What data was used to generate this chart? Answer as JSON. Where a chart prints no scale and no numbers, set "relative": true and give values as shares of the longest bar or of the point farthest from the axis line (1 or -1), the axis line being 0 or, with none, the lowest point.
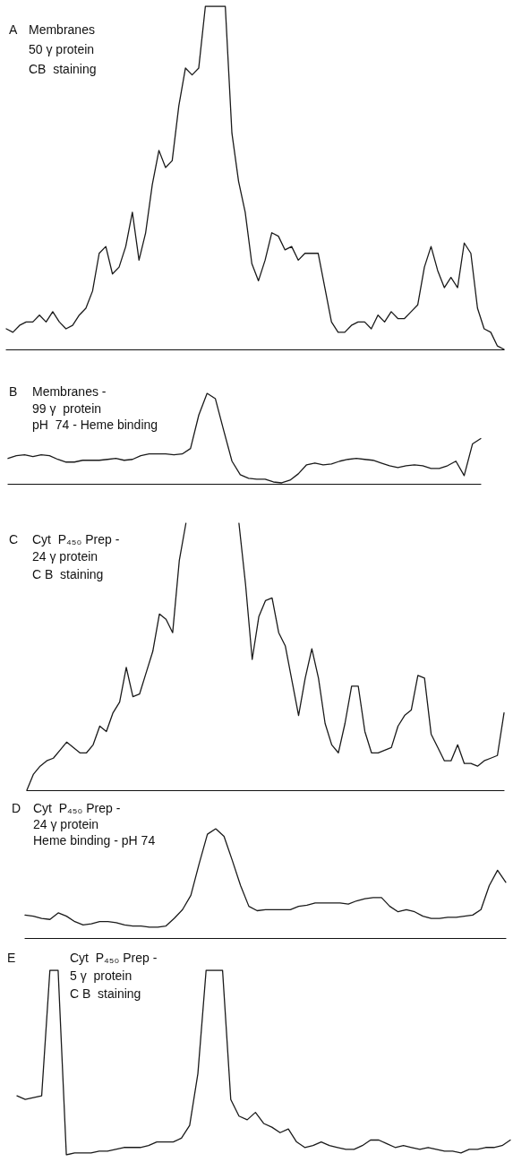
{
  "chart_data": [
    {
      "type": "line",
      "title": "A",
      "subtitle": "Membranes\n50 γ protein\nCB  staining",
      "relative": true,
      "marker": "none",
      "line_style": "solid",
      "categories": [
        null,
        null,
        null,
        null,
        null,
        null,
        null,
        null,
        null,
        null,
        null,
        null,
        null,
        null,
        null,
        null,
        null,
        null,
        null,
        null,
        null,
        null,
        null,
        null,
        null,
        null,
        null,
        null,
        null,
        null,
        null,
        null,
        null,
        null,
        null,
        null,
        null,
        null,
        null,
        null,
        null,
        null,
        null,
        null,
        null,
        null,
        null,
        null,
        null,
        null,
        null,
        null,
        null,
        null,
        null,
        null,
        null,
        null,
        null,
        null,
        null,
        null,
        null,
        null,
        null,
        null,
        null,
        null,
        null,
        null,
        null,
        null,
        null,
        null,
        null,
        null
      ],
      "series": [
        {
          "color": "#1a1a1a",
          "values": [
            0.06,
            0.05,
            0.07,
            0.08,
            0.08,
            0.1,
            0.08,
            0.11,
            0.08,
            0.06,
            0.07,
            0.1,
            0.12,
            0.17,
            0.28,
            0.3,
            0.22,
            0.24,
            0.3,
            0.4,
            0.26,
            0.34,
            0.48,
            0.58,
            0.53,
            0.55,
            0.71,
            0.82,
            0.8,
            0.82,
            1,
            1,
            1,
            1,
            0.63,
            0.49,
            0.4,
            0.25,
            0.2,
            0.26,
            0.34,
            0.33,
            0.29,
            0.3,
            0.26,
            0.28,
            0.28,
            0.28,
            0.18,
            0.08,
            0.05,
            0.05,
            0.07,
            0.08,
            0.08,
            0.06,
            0.1,
            0.08,
            0.11,
            0.09,
            0.09,
            0.11,
            0.13,
            0.24,
            0.3,
            0.23,
            0.18,
            0.21,
            0.18,
            0.31,
            0.28,
            0.12,
            0.06,
            0.05,
            0.01,
            0
          ]
        }
      ]
    },
    {
      "type": "line",
      "title": "B",
      "subtitle": "Membranes -\n99 γ  protein\npH  74 - Heme binding",
      "relative": true,
      "marker": "none",
      "line_style": "solid",
      "categories": [
        null,
        null,
        null,
        null,
        null,
        null,
        null,
        null,
        null,
        null,
        null,
        null,
        null,
        null,
        null,
        null,
        null,
        null,
        null,
        null,
        null,
        null,
        null,
        null,
        null,
        null,
        null,
        null,
        null,
        null,
        null,
        null,
        null,
        null,
        null,
        null,
        null,
        null,
        null,
        null,
        null,
        null,
        null,
        null,
        null,
        null,
        null,
        null,
        null,
        null,
        null,
        null,
        null,
        null,
        null,
        null,
        null,
        null
      ],
      "series": [
        {
          "color": "#1a1a1a",
          "values": [
            0.28,
            0.31,
            0.32,
            0.3,
            0.32,
            0.31,
            0.27,
            0.24,
            0.24,
            0.26,
            0.26,
            0.26,
            0.27,
            0.28,
            0.26,
            0.27,
            0.31,
            0.33,
            0.33,
            0.33,
            0.32,
            0.33,
            0.39,
            0.76,
            1.0,
            0.94,
            0.59,
            0.25,
            0.1,
            0.06,
            0.05,
            0.05,
            0.02,
            0.01,
            0.04,
            0.11,
            0.21,
            0.23,
            0.21,
            0.22,
            0.25,
            0.27,
            0.28,
            0.27,
            0.26,
            0.23,
            0.2,
            0.18,
            0.2,
            0.21,
            0.2,
            0.17,
            0.17,
            0.2,
            0.25,
            0.09,
            0.44,
            0.5
          ]
        }
      ]
    },
    {
      "type": "line",
      "title": "C",
      "subtitle": "Cyt  P₄₅₀ Prep -\n24 γ protein\nC B  staining",
      "relative": true,
      "marker": "none",
      "line_style": "solid",
      "categories": [
        null,
        null,
        null,
        null,
        null,
        null,
        null,
        null,
        null,
        null,
        null,
        null,
        null,
        null,
        null,
        null,
        null,
        null,
        null,
        null,
        null,
        null,
        null,
        null,
        null,
        null,
        null,
        null,
        null,
        null,
        null,
        null,
        null,
        null,
        null,
        null,
        null,
        null,
        null,
        null,
        null,
        null,
        null,
        null,
        null,
        null,
        null,
        null,
        null,
        null,
        null,
        null,
        null,
        null,
        null,
        null,
        null,
        null,
        null,
        null,
        null,
        null,
        null,
        null,
        null,
        null,
        null,
        null,
        null,
        null,
        null,
        null,
        null
      ],
      "series": [
        {
          "color": "#1a1a1a",
          "values": [
            0,
            0.06,
            0.09,
            0.11,
            0.12,
            0.15,
            0.18,
            0.16,
            0.14,
            0.14,
            0.17,
            0.24,
            0.22,
            0.29,
            0.33,
            0.46,
            0.35,
            0.36,
            0.44,
            0.52,
            0.66,
            0.64,
            0.59,
            0.86,
            1,
            null,
            null,
            null,
            null,
            null,
            null,
            null,
            1,
            0.77,
            0.49,
            0.65,
            0.71,
            0.72,
            0.59,
            0.54,
            0.41,
            0.28,
            0.42,
            0.53,
            0.42,
            0.25,
            0.17,
            0.14,
            0.25,
            0.39,
            0.39,
            0.22,
            0.14,
            0.14,
            0.15,
            0.16,
            0.24,
            0.28,
            0.3,
            0.43,
            0.42,
            0.21,
            0.16,
            0.11,
            0.11,
            0.17,
            0.1,
            0.1,
            0.09,
            0.11,
            0.12,
            0.13,
            0.29
          ]
        }
      ]
    },
    {
      "type": "line",
      "title": "D",
      "subtitle": "Cyt  P₄₅₀ Prep -\n24 γ protein\nHeme binding - pH 74",
      "relative": true,
      "marker": "none",
      "line_style": "solid",
      "categories": [
        null,
        null,
        null,
        null,
        null,
        null,
        null,
        null,
        null,
        null,
        null,
        null,
        null,
        null,
        null,
        null,
        null,
        null,
        null,
        null,
        null,
        null,
        null,
        null,
        null,
        null,
        null,
        null,
        null,
        null,
        null,
        null,
        null,
        null,
        null,
        null,
        null,
        null,
        null,
        null,
        null,
        null,
        null,
        null,
        null,
        null,
        null,
        null,
        null,
        null,
        null,
        null,
        null,
        null,
        null,
        null,
        null,
        null,
        null
      ],
      "series": [
        {
          "color": "#1a1a1a",
          "values": [
            0.21,
            0.2,
            0.18,
            0.17,
            0.23,
            0.2,
            0.15,
            0.12,
            0.13,
            0.15,
            0.15,
            0.14,
            0.12,
            0.11,
            0.11,
            0.1,
            0.1,
            0.11,
            0.18,
            0.26,
            0.39,
            0.68,
            0.95,
            1.0,
            0.93,
            0.71,
            0.48,
            0.29,
            0.25,
            0.26,
            0.26,
            0.26,
            0.26,
            0.29,
            0.3,
            0.32,
            0.32,
            0.32,
            0.32,
            0.31,
            0.34,
            0.36,
            0.37,
            0.37,
            0.29,
            0.24,
            0.26,
            0.24,
            0.2,
            0.18,
            0.18,
            0.19,
            0.19,
            0.2,
            0.21,
            0.26,
            0.48,
            0.62,
            0.51
          ]
        }
      ]
    },
    {
      "type": "line",
      "title": "E",
      "subtitle": "Cyt  P₄₅₀ Prep -\n5 γ  protein\nC B  staining",
      "relative": true,
      "marker": "none",
      "line_style": "solid",
      "categories": [
        null,
        null,
        null,
        null,
        null,
        null,
        null,
        null,
        null,
        null,
        null,
        null,
        null,
        null,
        null,
        null,
        null,
        null,
        null,
        null,
        null,
        null,
        null,
        null,
        null,
        null,
        null,
        null,
        null,
        null,
        null,
        null,
        null,
        null,
        null,
        null,
        null,
        null,
        null,
        null,
        null,
        null,
        null,
        null,
        null,
        null,
        null,
        null,
        null,
        null,
        null,
        null,
        null,
        null,
        null,
        null,
        null,
        null,
        null,
        null,
        null
      ],
      "series": [
        {
          "color": "#1a1a1a",
          "values": [
            0.32,
            0.3,
            0.31,
            0.32,
            1,
            1,
            0,
            0.01,
            0.01,
            0.01,
            0.02,
            0.02,
            0.03,
            0.04,
            0.04,
            0.04,
            0.05,
            0.07,
            0.07,
            0.07,
            0.09,
            0.16,
            0.44,
            1,
            1,
            1,
            0.3,
            0.21,
            0.19,
            0.23,
            0.17,
            0.15,
            0.12,
            0.14,
            0.07,
            0.04,
            0.05,
            0.07,
            0.05,
            0.04,
            0.03,
            0.03,
            0.05,
            0.08,
            0.08,
            0.06,
            0.04,
            0.05,
            0.04,
            0.03,
            0.04,
            0.03,
            0.02,
            0.02,
            0.01,
            0.03,
            0.03,
            0.04,
            0.04,
            0.05,
            0.08
          ]
        }
      ]
    }
  ]
}
